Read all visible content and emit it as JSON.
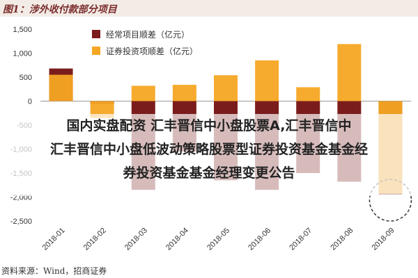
{
  "header": {
    "title": "图1：涉外收付款部分项目"
  },
  "chart_data": {
    "type": "bar",
    "categories": [
      "2018-01",
      "2018-02",
      "2018-03",
      "2018-04",
      "2018-05",
      "2018-06",
      "2018-07",
      "2018-08",
      "2018-09"
    ],
    "series": [
      {
        "name": "经常项目顺差（亿元）",
        "color": "#7b1c1c",
        "values": [
          680,
          -60,
          -1850,
          -1050,
          -1650,
          -1850,
          -1500,
          -1680,
          -1950
        ]
      },
      {
        "name": "证券投资项顺差（亿元）",
        "color": "#f5a623",
        "values": [
          550,
          -350,
          320,
          340,
          540,
          850,
          290,
          1190,
          -1930
        ]
      }
    ],
    "ylim": [
      -2500,
      1500
    ],
    "yticks": [
      1500,
      1000,
      500,
      0,
      -500,
      -1000,
      -1500,
      -2000,
      -2500
    ],
    "ytick_labels": [
      "1,500",
      "1,000",
      "500",
      "0",
      "-500",
      "-1,000",
      "-1,500",
      "-2,000",
      "-2,500"
    ],
    "legend": "top-left",
    "grid": false
  },
  "overlay": {
    "lines": [
      "国内实盘配资 汇丰晋信中小盘股票A,汇丰晋信中",
      "汇丰晋信中小盘低波动策略股票型证券投资基金基金经",
      "券投资基金基金经理变更公告"
    ]
  },
  "footer": {
    "source": "资料来源：Wind，招商证券"
  }
}
